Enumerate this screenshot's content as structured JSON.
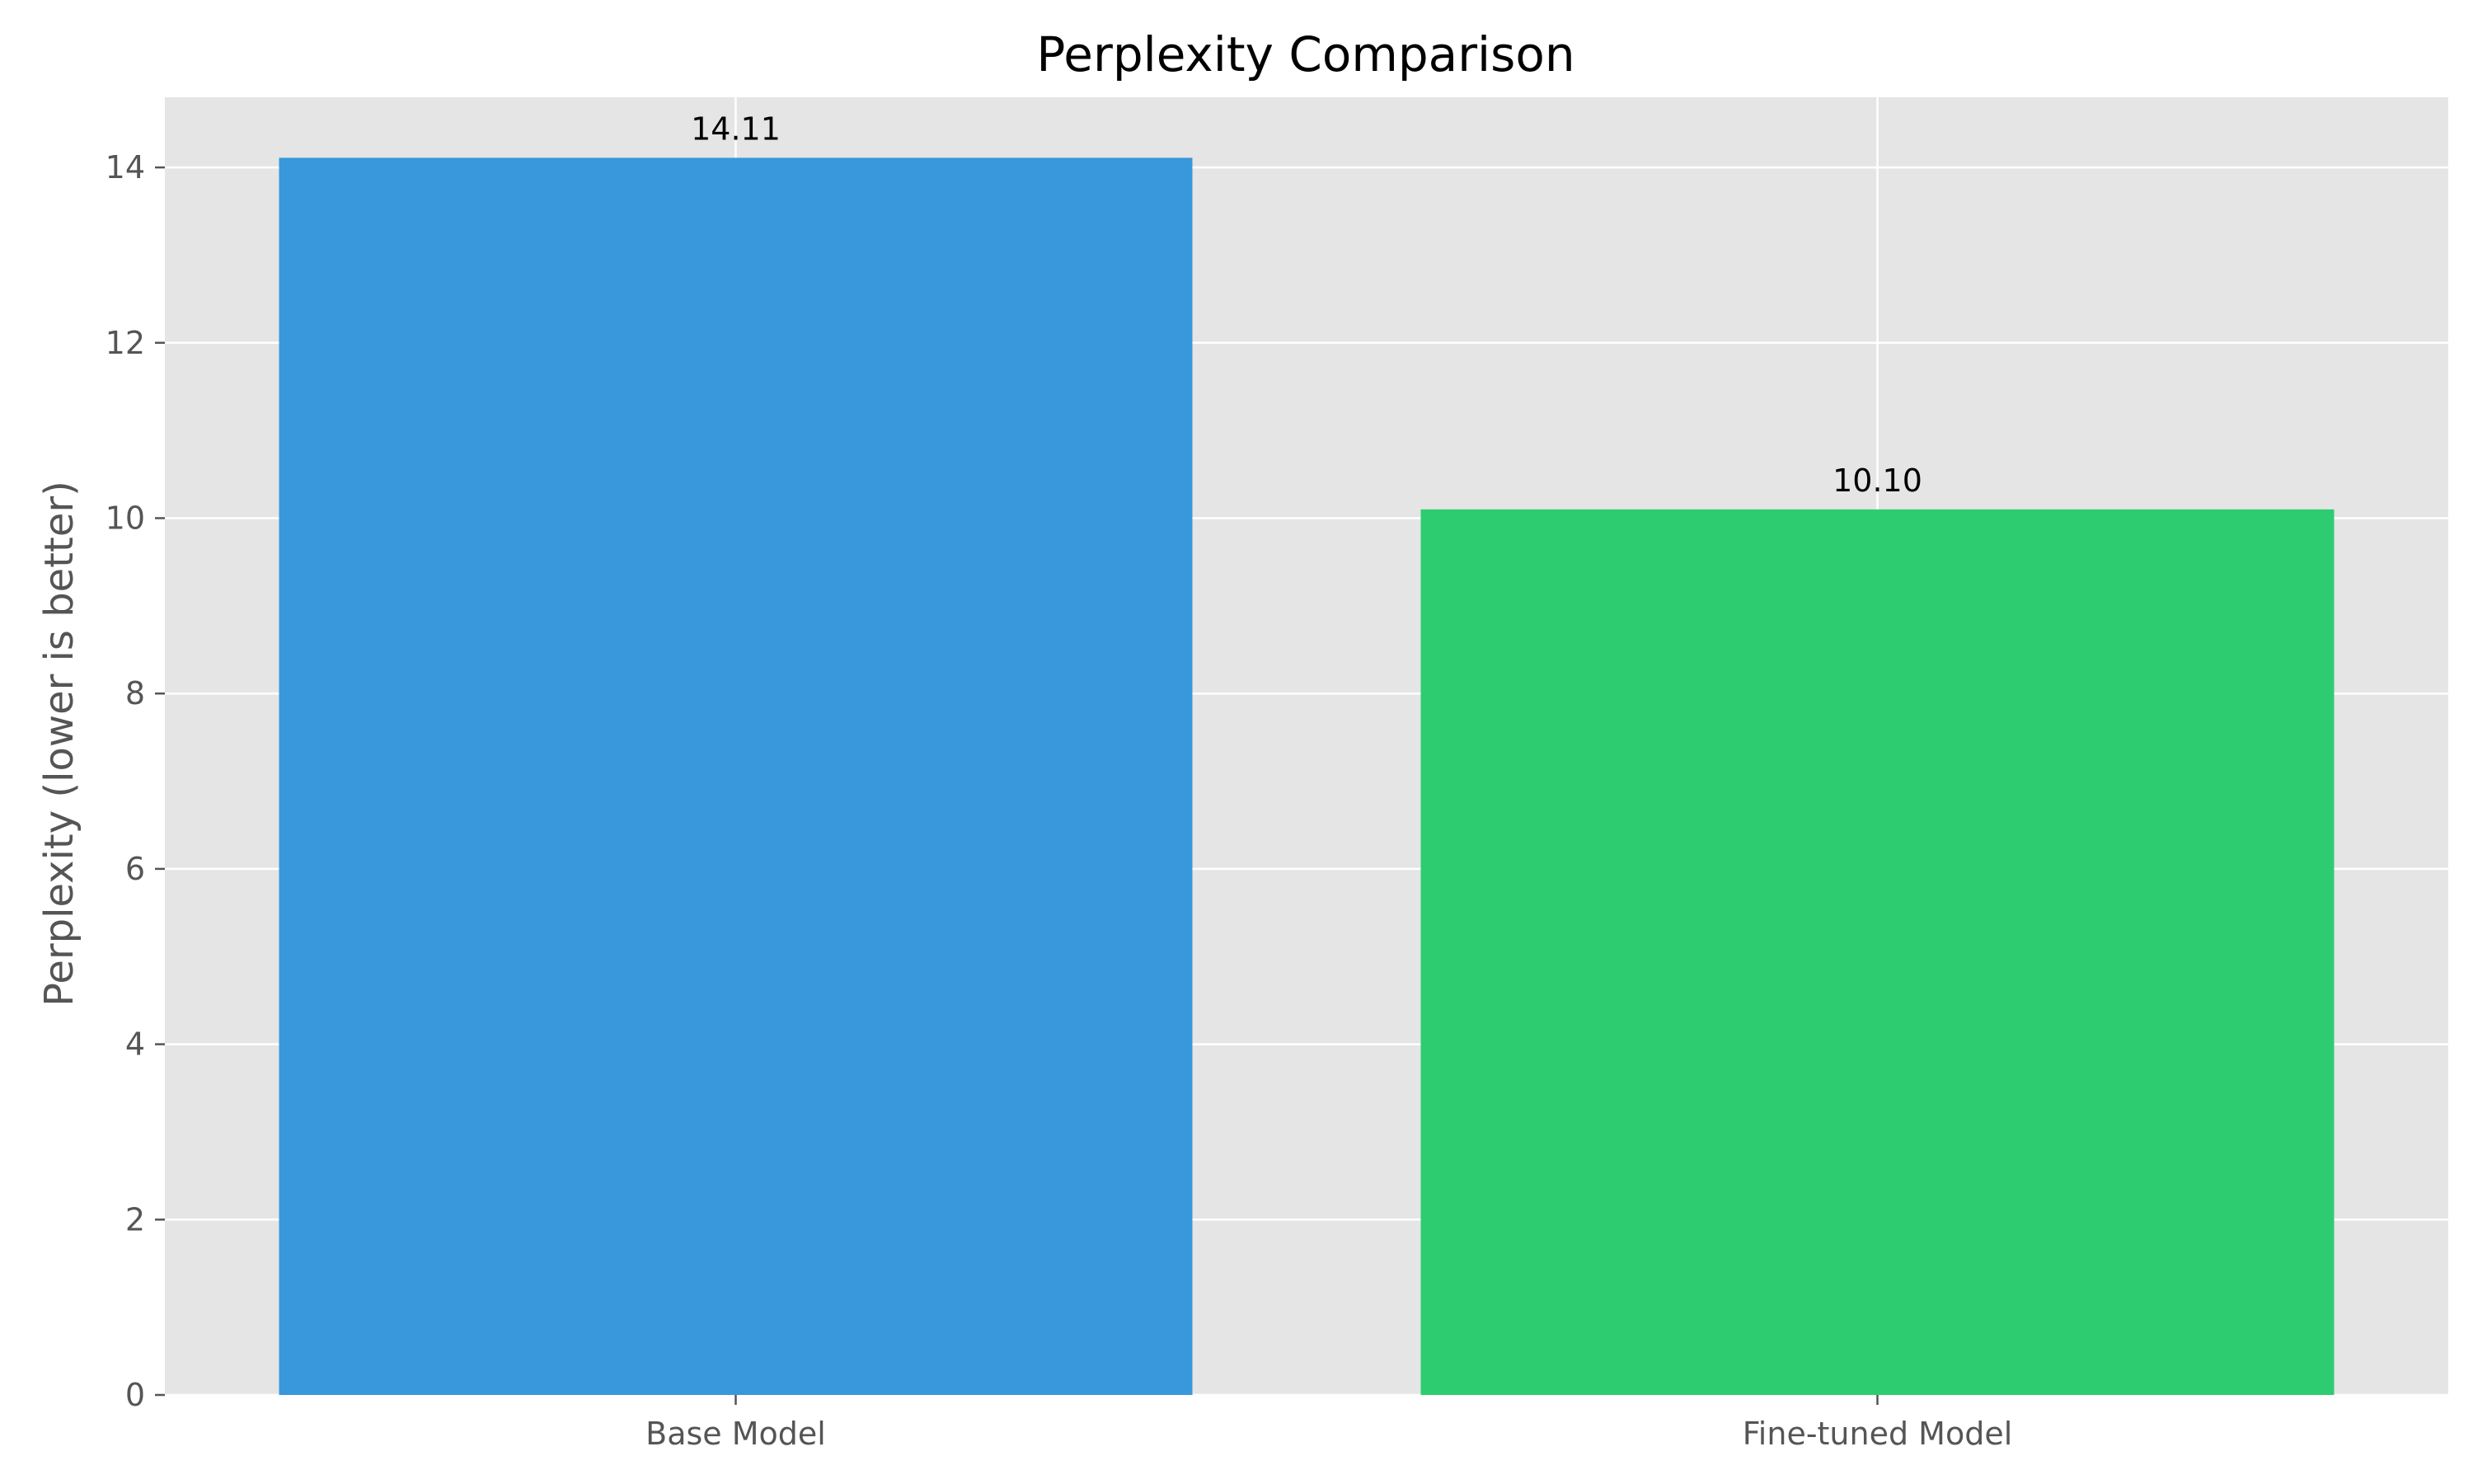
{
  "chart_data": {
    "type": "bar",
    "title": "Perplexity Comparison",
    "xlabel": "",
    "ylabel": "Perplexity (lower is better)",
    "categories": [
      "Base Model",
      "Fine-tuned Model"
    ],
    "values": [
      14.11,
      10.1
    ],
    "value_labels": [
      "14.11",
      "10.10"
    ],
    "bar_colors": [
      "#3898db",
      "#2ecc71"
    ],
    "ylim": [
      0,
      14.8
    ],
    "yticks": [
      0,
      2,
      4,
      6,
      8,
      10,
      12,
      14
    ],
    "ytick_labels": [
      "0",
      "2",
      "4",
      "6",
      "8",
      "10",
      "12",
      "14"
    ],
    "grid": true,
    "background_color": "#e5e5e5",
    "grid_color": "#ffffff"
  }
}
